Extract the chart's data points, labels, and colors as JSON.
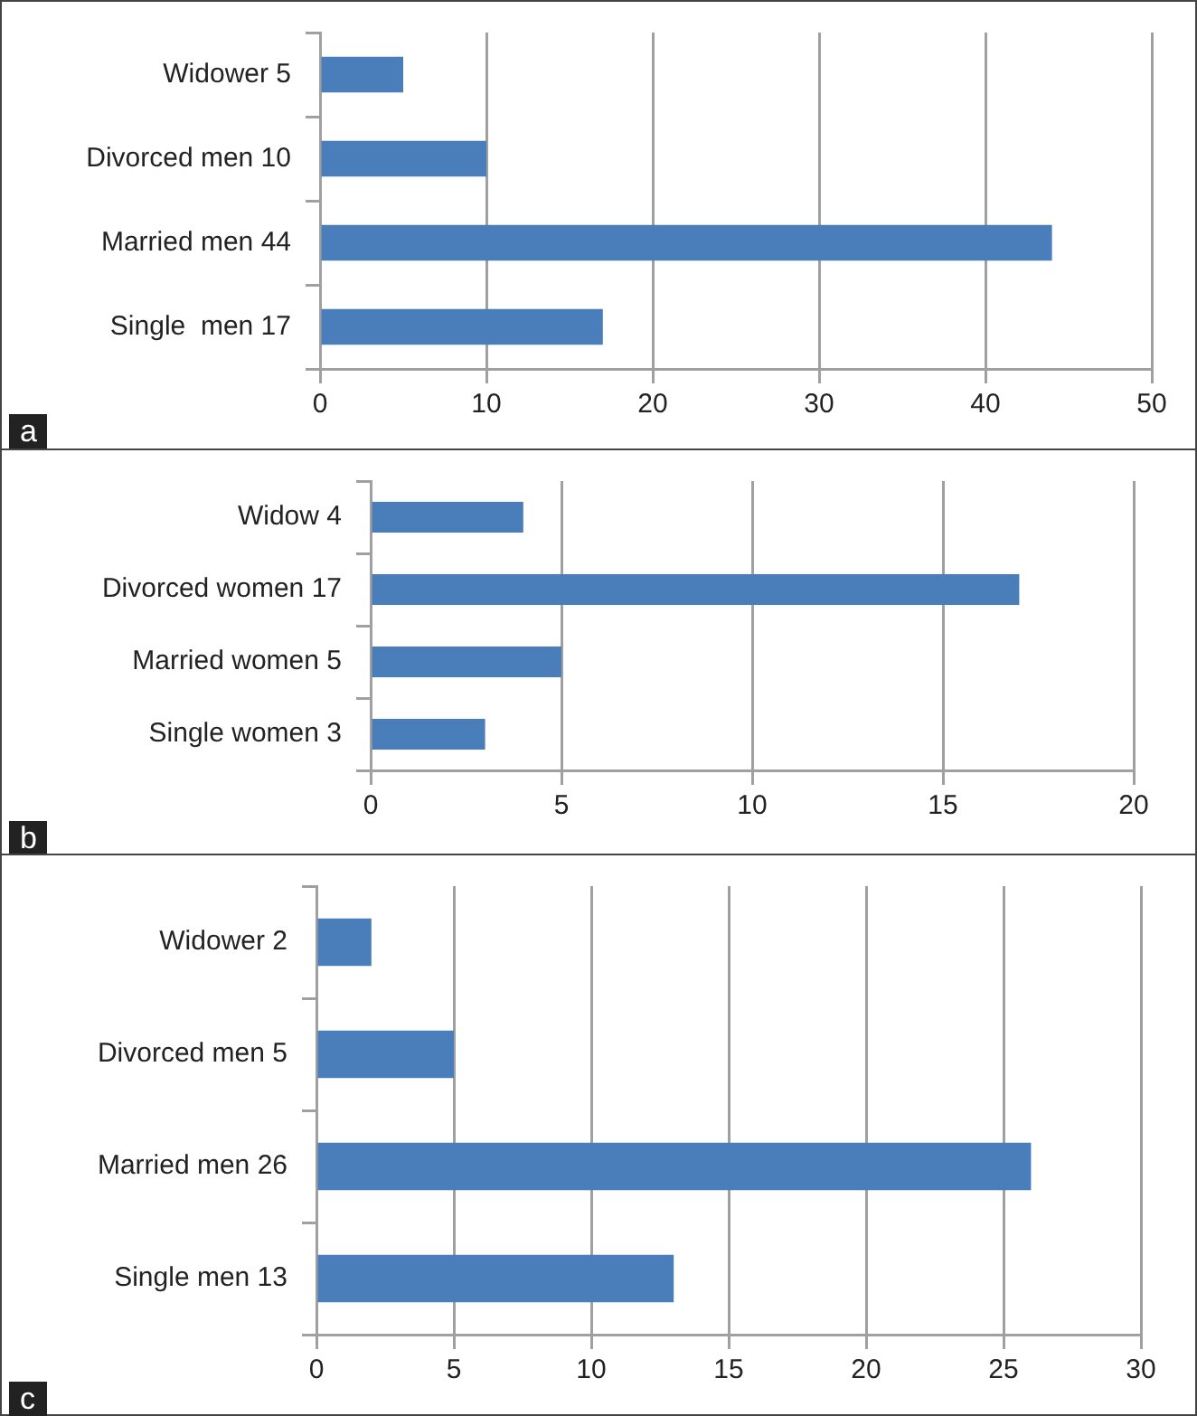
{
  "chart_data": [
    {
      "type": "bar",
      "orientation": "horizontal",
      "categories": [
        "Widower 5",
        "Divorced men 10",
        "Married men 44",
        "Single  men 17"
      ],
      "values": [
        5,
        10,
        44,
        17
      ],
      "color": "#4a7ebb",
      "xlim": [
        0,
        50
      ],
      "xticks": [
        0,
        10,
        20,
        30,
        40,
        50
      ],
      "grid": "x",
      "legend": false,
      "annotations": [
        "a"
      ]
    },
    {
      "type": "bar",
      "orientation": "horizontal",
      "categories": [
        "Widow 4",
        "Divorced women 17",
        "Married women 5",
        "Single women 3"
      ],
      "values": [
        4,
        17,
        5,
        3
      ],
      "color": "#4a7ebb",
      "xlim": [
        0,
        20
      ],
      "xticks": [
        0,
        5,
        10,
        15,
        20
      ],
      "grid": "x",
      "legend": false,
      "annotations": [
        "b"
      ]
    },
    {
      "type": "bar",
      "orientation": "horizontal",
      "categories": [
        "Widower 2",
        "Divorced men 5",
        "Married men 26",
        "Single men 13"
      ],
      "values": [
        2,
        5,
        26,
        13
      ],
      "color": "#4a7ebb",
      "xlim": [
        0,
        30
      ],
      "xticks": [
        0,
        5,
        10,
        15,
        20,
        25,
        30
      ],
      "grid": "x",
      "legend": false,
      "annotations": [
        "c"
      ]
    }
  ]
}
